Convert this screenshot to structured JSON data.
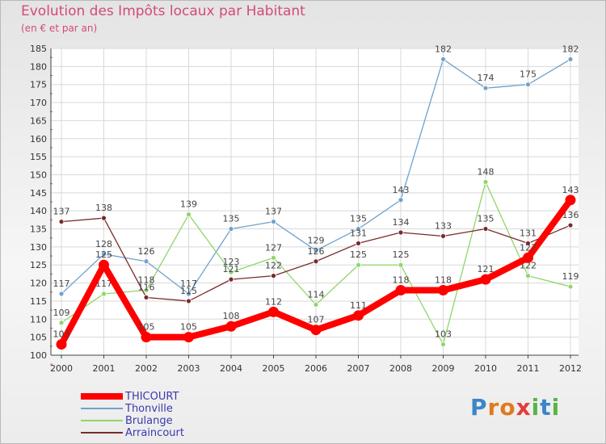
{
  "header": {
    "title": "Evolution des Impôts locaux par Habitant",
    "subtitle": "(en € et par an)"
  },
  "logo": {
    "text": "Proxiti",
    "letters": [
      "P",
      "r",
      "o",
      "x",
      "i",
      "t",
      "i"
    ],
    "colors": [
      "#3b86c9",
      "#e07a1f",
      "#e07a1f",
      "#e43b3b",
      "#58b447",
      "#3b86c9",
      "#58b447"
    ]
  },
  "chart_data": {
    "type": "line",
    "title": "Evolution des Impôts locaux par Habitant",
    "subtitle": "(en € et par an)",
    "xlabel": "",
    "ylabel": "",
    "ylim": [
      100,
      185
    ],
    "yticks": [
      100,
      105,
      110,
      115,
      120,
      125,
      130,
      135,
      140,
      145,
      150,
      155,
      160,
      165,
      170,
      175,
      180,
      185
    ],
    "categories": [
      "2000",
      "2001",
      "2002",
      "2003",
      "2004",
      "2005",
      "2006",
      "2007",
      "2008",
      "2009",
      "2010",
      "2011",
      "2012"
    ],
    "grid": true,
    "series": [
      {
        "name": "THICOURT",
        "color": "#ff0000",
        "values": [
          103,
          125,
          105,
          105,
          108,
          112,
          107,
          111,
          118,
          118,
          121,
          127,
          143
        ]
      },
      {
        "name": "Thonville",
        "color": "#6fa2cc",
        "values": [
          117,
          128,
          126,
          117,
          135,
          137,
          129,
          135,
          143,
          182,
          174,
          175,
          182
        ]
      },
      {
        "name": "Brulange",
        "color": "#8fd66a",
        "values": [
          109,
          117,
          118,
          139,
          123,
          127,
          114,
          125,
          125,
          103,
          148,
          122,
          119
        ]
      },
      {
        "name": "Arraincourt",
        "color": "#7a2a2a",
        "values": [
          137,
          138,
          116,
          115,
          121,
          122,
          126,
          131,
          134,
          133,
          135,
          131,
          136
        ]
      }
    ]
  }
}
